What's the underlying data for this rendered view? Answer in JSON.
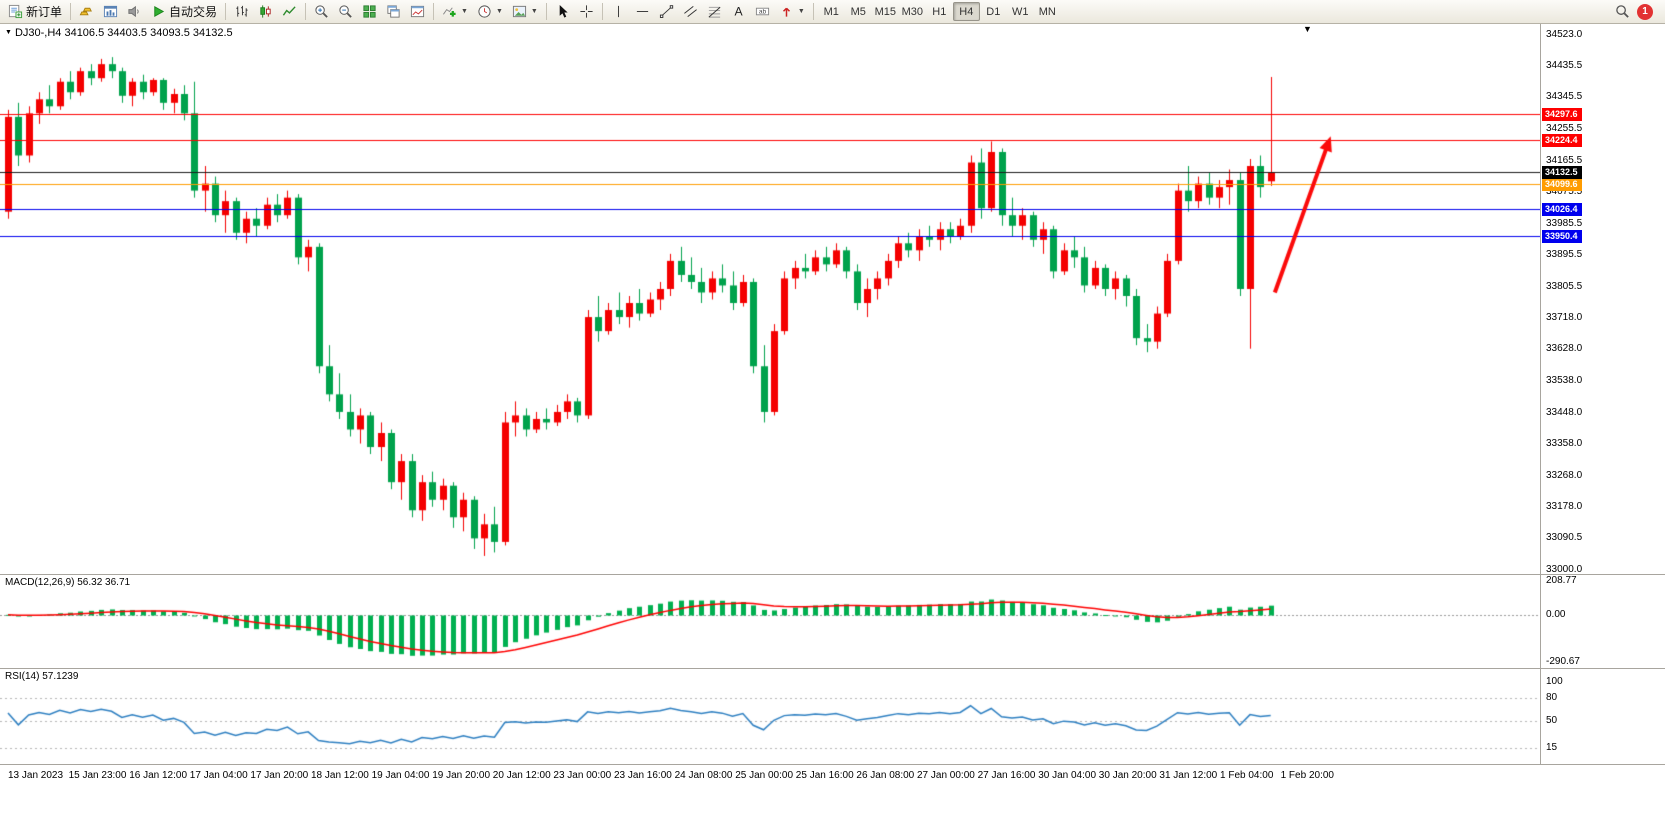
{
  "toolbar": {
    "new_order": "新订单",
    "auto_trading": "自动交易",
    "timeframes": [
      "M1",
      "M5",
      "M15",
      "M30",
      "H1",
      "H4",
      "D1",
      "W1",
      "MN"
    ],
    "active_timeframe": "H4",
    "notification_count": "1"
  },
  "chart": {
    "title": "DJ30-,H4 34106.5 34403.5 34093.5 34132.5",
    "symbol": "DJ30-",
    "timeframe": "H4",
    "ohlc": {
      "open": "34106.5",
      "high": "34403.5",
      "low": "34093.5",
      "close": "34132.5"
    },
    "colors": {
      "up": "#f40000",
      "down": "#00a24c",
      "bid": "#1a1a1a",
      "arrow": "#fb0a0a"
    },
    "price_axis": {
      "max": 34523.0,
      "min": 33000.0,
      "labels": [
        "34523.0",
        "34435.5",
        "34345.5",
        "34255.5",
        "34165.5",
        "34075.5",
        "33985.5",
        "33895.5",
        "33805.5",
        "33718.0",
        "33628.0",
        "33538.0",
        "33448.0",
        "33358.0",
        "33268.0",
        "33178.0",
        "33090.5",
        "33000.0"
      ]
    },
    "hlines": [
      {
        "price": 34297.6,
        "tag": "34297.6",
        "color": "#fe0000"
      },
      {
        "price": 34224.4,
        "tag": "34224.4",
        "color": "#fe0000"
      },
      {
        "price": 34099.6,
        "tag": "34099.6",
        "color": "#ff9c00"
      },
      {
        "price": 34026.4,
        "tag": "34026.4",
        "color": "#0000ee"
      },
      {
        "price": 33950.4,
        "tag": "33950.4",
        "color": "#0000ee"
      }
    ],
    "bid": {
      "price": 34132.5,
      "tag": "34132.5",
      "color": "#000000"
    },
    "annotation_arrow": {
      "from_bar": 122.4,
      "from_price": 33790,
      "to_bar": 127.8,
      "to_price": 34235,
      "width": 4
    },
    "candles": [
      [
        34020,
        34310,
        34000,
        34290
      ],
      [
        34290,
        34330,
        34150,
        34180
      ],
      [
        34180,
        34320,
        34160,
        34300
      ],
      [
        34300,
        34360,
        34270,
        34340
      ],
      [
        34340,
        34380,
        34300,
        34320
      ],
      [
        34320,
        34400,
        34310,
        34390
      ],
      [
        34390,
        34420,
        34340,
        34360
      ],
      [
        34360,
        34430,
        34350,
        34420
      ],
      [
        34420,
        34440,
        34380,
        34400
      ],
      [
        34400,
        34455,
        34390,
        34440
      ],
      [
        34440,
        34460,
        34400,
        34420
      ],
      [
        34420,
        34430,
        34330,
        34350
      ],
      [
        34350,
        34400,
        34320,
        34390
      ],
      [
        34390,
        34410,
        34340,
        34360
      ],
      [
        34360,
        34400,
        34350,
        34395
      ],
      [
        34395,
        34400,
        34310,
        34330
      ],
      [
        34330,
        34370,
        34300,
        34355
      ],
      [
        34355,
        34380,
        34280,
        34300
      ],
      [
        34300,
        34390,
        34060,
        34080
      ],
      [
        34080,
        34150,
        34020,
        34100
      ],
      [
        34100,
        34120,
        33990,
        34010
      ],
      [
        34010,
        34080,
        33960,
        34050
      ],
      [
        34050,
        34060,
        33940,
        33960
      ],
      [
        33960,
        34020,
        33930,
        34000
      ],
      [
        34000,
        34030,
        33950,
        33980
      ],
      [
        33980,
        34060,
        33970,
        34040
      ],
      [
        34040,
        34070,
        33990,
        34010
      ],
      [
        34010,
        34080,
        34000,
        34060
      ],
      [
        34060,
        34070,
        33870,
        33890
      ],
      [
        33890,
        33940,
        33850,
        33920
      ],
      [
        33920,
        33930,
        33560,
        33580
      ],
      [
        33580,
        33640,
        33480,
        33500
      ],
      [
        33500,
        33560,
        33430,
        33450
      ],
      [
        33450,
        33500,
        33380,
        33400
      ],
      [
        33400,
        33460,
        33360,
        33440
      ],
      [
        33440,
        33450,
        33330,
        33350
      ],
      [
        33350,
        33420,
        33310,
        33390
      ],
      [
        33390,
        33400,
        33230,
        33250
      ],
      [
        33250,
        33330,
        33200,
        33310
      ],
      [
        33310,
        33330,
        33150,
        33170
      ],
      [
        33170,
        33270,
        33140,
        33250
      ],
      [
        33250,
        33280,
        33180,
        33200
      ],
      [
        33200,
        33260,
        33170,
        33240
      ],
      [
        33240,
        33250,
        33120,
        33150
      ],
      [
        33150,
        33220,
        33110,
        33200
      ],
      [
        33200,
        33210,
        33060,
        33090
      ],
      [
        33090,
        33160,
        33040,
        33130
      ],
      [
        33130,
        33180,
        33050,
        33080
      ],
      [
        33080,
        33450,
        33070,
        33420
      ],
      [
        33420,
        33480,
        33380,
        33440
      ],
      [
        33440,
        33460,
        33380,
        33400
      ],
      [
        33400,
        33450,
        33390,
        33430
      ],
      [
        33430,
        33460,
        33400,
        33420
      ],
      [
        33420,
        33470,
        33410,
        33450
      ],
      [
        33450,
        33500,
        33430,
        33480
      ],
      [
        33480,
        33490,
        33420,
        33440
      ],
      [
        33440,
        33740,
        33430,
        33720
      ],
      [
        33720,
        33780,
        33650,
        33680
      ],
      [
        33680,
        33760,
        33670,
        33740
      ],
      [
        33740,
        33790,
        33700,
        33720
      ],
      [
        33720,
        33780,
        33690,
        33760
      ],
      [
        33760,
        33800,
        33710,
        33730
      ],
      [
        33730,
        33790,
        33720,
        33770
      ],
      [
        33770,
        33820,
        33740,
        33800
      ],
      [
        33800,
        33900,
        33780,
        33880
      ],
      [
        33880,
        33920,
        33820,
        33840
      ],
      [
        33840,
        33890,
        33800,
        33820
      ],
      [
        33820,
        33860,
        33760,
        33790
      ],
      [
        33790,
        33850,
        33770,
        33830
      ],
      [
        33830,
        33870,
        33790,
        33810
      ],
      [
        33810,
        33850,
        33740,
        33760
      ],
      [
        33760,
        33840,
        33750,
        33820
      ],
      [
        33820,
        33830,
        33560,
        33580
      ],
      [
        33580,
        33640,
        33420,
        33450
      ],
      [
        33450,
        33700,
        33440,
        33680
      ],
      [
        33680,
        33850,
        33670,
        33830
      ],
      [
        33830,
        33880,
        33800,
        33860
      ],
      [
        33860,
        33900,
        33830,
        33850
      ],
      [
        33850,
        33910,
        33840,
        33890
      ],
      [
        33890,
        33920,
        33850,
        33870
      ],
      [
        33870,
        33930,
        33860,
        33910
      ],
      [
        33910,
        33920,
        33830,
        33850
      ],
      [
        33850,
        33870,
        33740,
        33760
      ],
      [
        33760,
        33830,
        33720,
        33800
      ],
      [
        33800,
        33850,
        33770,
        33830
      ],
      [
        33830,
        33900,
        33810,
        33880
      ],
      [
        33880,
        33950,
        33860,
        33930
      ],
      [
        33930,
        33960,
        33890,
        33910
      ],
      [
        33910,
        33970,
        33880,
        33950
      ],
      [
        33950,
        33980,
        33920,
        33940
      ],
      [
        33940,
        33990,
        33910,
        33970
      ],
      [
        33970,
        33990,
        33930,
        33950
      ],
      [
        33950,
        34000,
        33940,
        33980
      ],
      [
        33980,
        34180,
        33960,
        34160
      ],
      [
        34160,
        34200,
        34000,
        34030
      ],
      [
        34030,
        34220,
        34020,
        34190
      ],
      [
        34190,
        34200,
        33980,
        34010
      ],
      [
        34010,
        34060,
        33950,
        33980
      ],
      [
        33980,
        34030,
        33940,
        34010
      ],
      [
        34010,
        34020,
        33920,
        33940
      ],
      [
        33940,
        33990,
        33900,
        33970
      ],
      [
        33970,
        33980,
        33830,
        33850
      ],
      [
        33850,
        33930,
        33840,
        33910
      ],
      [
        33910,
        33950,
        33860,
        33890
      ],
      [
        33890,
        33920,
        33790,
        33810
      ],
      [
        33810,
        33880,
        33800,
        33860
      ],
      [
        33860,
        33870,
        33780,
        33800
      ],
      [
        33800,
        33850,
        33770,
        33830
      ],
      [
        33830,
        33840,
        33750,
        33780
      ],
      [
        33780,
        33800,
        33640,
        33660
      ],
      [
        33660,
        33700,
        33620,
        33650
      ],
      [
        33650,
        33750,
        33630,
        33730
      ],
      [
        33730,
        33900,
        33720,
        33880
      ],
      [
        33880,
        34100,
        33870,
        34080
      ],
      [
        34080,
        34150,
        34020,
        34050
      ],
      [
        34050,
        34120,
        34030,
        34100
      ],
      [
        34100,
        34130,
        34040,
        34060
      ],
      [
        34060,
        34110,
        34030,
        34090
      ],
      [
        34090,
        34140,
        34040,
        34110
      ],
      [
        34110,
        34130,
        33780,
        33800
      ],
      [
        33800,
        34170,
        33630,
        34150
      ],
      [
        34150,
        34180,
        34060,
        34090
      ],
      [
        34106.5,
        34403.5,
        34093.5,
        34132.5
      ]
    ]
  },
  "macd": {
    "label": "MACD(12,26,9) 56.32 36.71",
    "fast": 12,
    "slow": 26,
    "signal": 9,
    "max": 208.77,
    "min": -290.67,
    "axis": [
      {
        "value": 208.77,
        "text": "208.77"
      },
      {
        "value": 0,
        "text": "0.00"
      },
      {
        "value": -290.67,
        "text": "-290.67"
      }
    ],
    "hist_color": "#00b050",
    "signal_color": "#fe0000"
  },
  "rsi": {
    "label": "RSI(14) 57.1239",
    "period": 14,
    "axis": [
      {
        "value": 100,
        "text": "100"
      },
      {
        "value": 80,
        "text": "80"
      },
      {
        "value": 50,
        "text": "50"
      },
      {
        "value": 15,
        "text": "15"
      }
    ],
    "levels": [
      80,
      50,
      15
    ],
    "line_color": "#2d7fc1"
  },
  "time_axis": [
    "13 Jan 2023",
    "15 Jan 23:00",
    "16 Jan 12:00",
    "17 Jan 04:00",
    "17 Jan 20:00",
    "18 Jan 12:00",
    "19 Jan 04:00",
    "19 Jan 20:00",
    "20 Jan 12:00",
    "23 Jan 00:00",
    "23 Jan 16:00",
    "24 Jan 08:00",
    "25 Jan 00:00",
    "25 Jan 16:00",
    "26 Jan 08:00",
    "27 Jan 00:00",
    "27 Jan 16:00",
    "30 Jan 04:00",
    "30 Jan 20:00",
    "31 Jan 12:00",
    "1 Feb 04:00",
    "1 Feb 20:00"
  ]
}
